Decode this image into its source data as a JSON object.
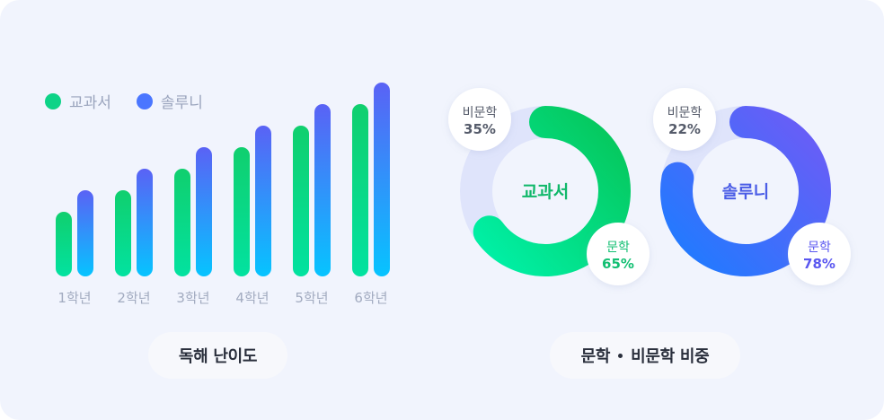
{
  "colors": {
    "textbook": "#0dd387",
    "solution": "#4a76ff",
    "pill_text": "#2a2f3c",
    "muted": "#9aa4bd"
  },
  "legend": {
    "items": [
      {
        "label": "교과서",
        "icon": "green-dot-icon"
      },
      {
        "label": "솔루니",
        "icon": "blue-dot-icon"
      }
    ]
  },
  "left_panel": {
    "caption": "독해 난이도"
  },
  "right_panel": {
    "caption_part1": "문학",
    "caption_part2": "비문학 비중"
  },
  "chart_data": [
    {
      "type": "bar",
      "title": "독해 난이도",
      "categories": [
        "1학년",
        "2학년",
        "3학년",
        "4학년",
        "5학년",
        "6학년"
      ],
      "series": [
        {
          "name": "교과서",
          "values": [
            3,
            4,
            5,
            6,
            7,
            8
          ]
        },
        {
          "name": "솔루니",
          "values": [
            4,
            5,
            6,
            7,
            8,
            9
          ]
        }
      ],
      "ylim": [
        0,
        9
      ],
      "grid": false,
      "legend": "top-left"
    },
    {
      "type": "pie",
      "title": "교과서",
      "slices": [
        {
          "label": "문학",
          "value": 65
        },
        {
          "label": "비문학",
          "value": 35
        }
      ]
    },
    {
      "type": "pie",
      "title": "솔루니",
      "slices": [
        {
          "label": "문학",
          "value": 78
        },
        {
          "label": "비문학",
          "value": 22
        }
      ]
    }
  ],
  "donuts": [
    {
      "center_label": "교과서",
      "major": {
        "label": "문학",
        "pct_text": "65%",
        "color": "#12bf72"
      },
      "minor": {
        "label": "비문학",
        "pct_text": "35%",
        "color": "#555b6a"
      }
    },
    {
      "center_label": "솔루니",
      "major": {
        "label": "문학",
        "pct_text": "78%",
        "color": "#5a57f0"
      },
      "minor": {
        "label": "비문학",
        "pct_text": "22%",
        "color": "#555b6a"
      }
    }
  ]
}
